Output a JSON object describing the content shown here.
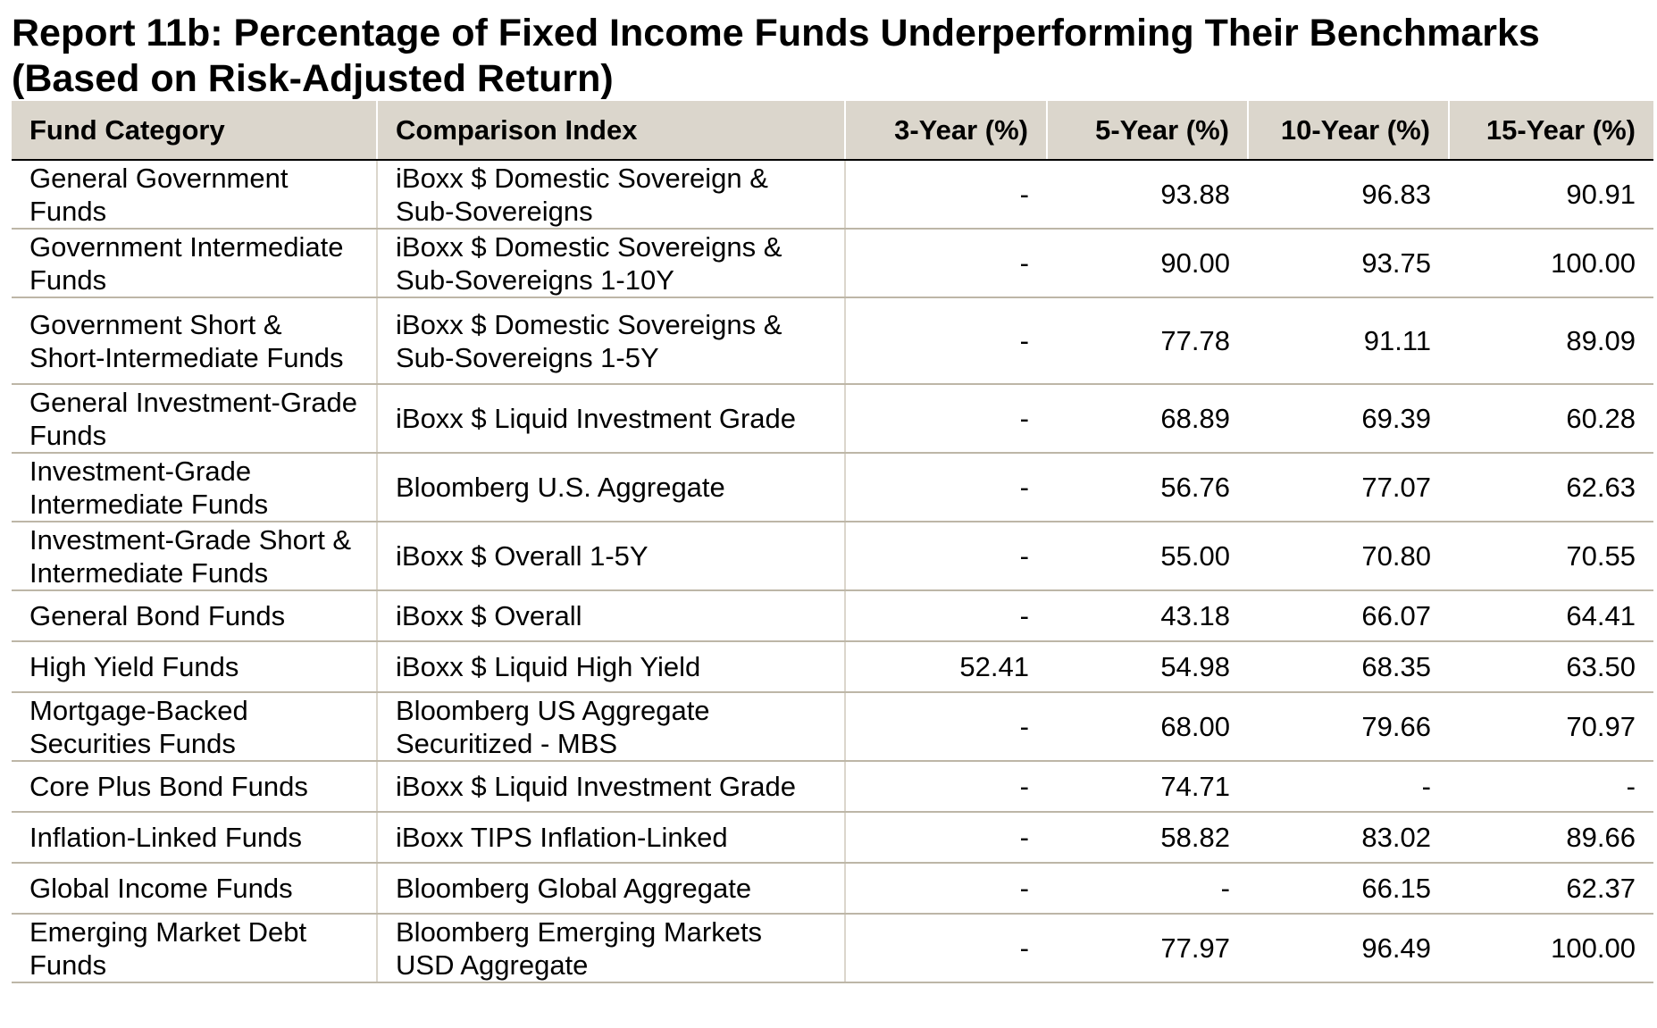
{
  "chart_data": {
    "type": "table",
    "title_line1": "Report 11b: Percentage of Fixed Income Funds Underperforming Their Benchmarks",
    "title_line2": "(Based on Risk-Adjusted Return)",
    "columns": [
      "Fund Category",
      "Comparison Index",
      "3-Year (%)",
      "5-Year (%)",
      "10-Year (%)",
      "15-Year (%)"
    ],
    "rows": [
      {
        "category": "General Government Funds",
        "index": "iBoxx $ Domestic Sovereign & Sub-Sovereigns",
        "y3": "-",
        "y5": "93.88",
        "y10": "96.83",
        "y15": "90.91"
      },
      {
        "category": "Government Intermediate Funds",
        "index": "iBoxx $ Domestic Sovereigns & Sub-Sovereigns 1-10Y",
        "y3": "-",
        "y5": "90.00",
        "y10": "93.75",
        "y15": "100.00"
      },
      {
        "category": "Government Short & Short-Intermediate Funds",
        "index": "iBoxx $ Domestic Sovereigns & Sub-Sovereigns 1-5Y",
        "y3": "-",
        "y5": "77.78",
        "y10": "91.11",
        "y15": "89.09"
      },
      {
        "category": "General Investment-Grade Funds",
        "index": "iBoxx $ Liquid Investment Grade",
        "y3": "-",
        "y5": "68.89",
        "y10": "69.39",
        "y15": "60.28"
      },
      {
        "category": "Investment-Grade Intermediate Funds",
        "index": "Bloomberg U.S. Aggregate",
        "y3": "-",
        "y5": "56.76",
        "y10": "77.07",
        "y15": "62.63"
      },
      {
        "category": "Investment-Grade Short & Intermediate Funds",
        "index": "iBoxx $ Overall 1-5Y",
        "y3": "-",
        "y5": "55.00",
        "y10": "70.80",
        "y15": "70.55"
      },
      {
        "category": "General Bond Funds",
        "index": "iBoxx $ Overall",
        "y3": "-",
        "y5": "43.18",
        "y10": "66.07",
        "y15": "64.41"
      },
      {
        "category": "High Yield Funds",
        "index": "iBoxx $ Liquid High Yield",
        "y3": "52.41",
        "y5": "54.98",
        "y10": "68.35",
        "y15": "63.50"
      },
      {
        "category": "Mortgage-Backed Securities Funds",
        "index": "Bloomberg US Aggregate Securitized - MBS",
        "y3": "-",
        "y5": "68.00",
        "y10": "79.66",
        "y15": "70.97"
      },
      {
        "category": "Core Plus Bond Funds",
        "index": "iBoxx $ Liquid Investment Grade",
        "y3": "-",
        "y5": "74.71",
        "y10": "-",
        "y15": "-"
      },
      {
        "category": "Inflation-Linked Funds",
        "index": "iBoxx TIPS Inflation-Linked",
        "y3": "-",
        "y5": "58.82",
        "y10": "83.02",
        "y15": "89.66"
      },
      {
        "category": "Global Income Funds",
        "index": "Bloomberg Global Aggregate",
        "y3": "-",
        "y5": "-",
        "y10": "66.15",
        "y15": "62.37"
      },
      {
        "category": "Emerging Market Debt Funds",
        "index": "Bloomberg Emerging Markets USD Aggregate",
        "y3": "-",
        "y5": "77.97",
        "y10": "96.49",
        "y15": "100.00"
      }
    ]
  },
  "colors": {
    "header_background": "#dbd6cc",
    "row_divider": "#bdb6a7",
    "text": "#000000"
  }
}
